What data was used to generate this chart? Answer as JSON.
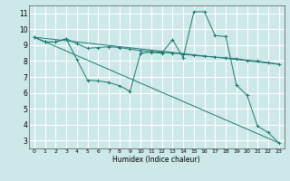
{
  "background_color": "#cce8e8",
  "grid_color": "#ffffff",
  "line_color": "#1a7a6e",
  "xlabel": "Humidex (Indice chaleur)",
  "xlim": [
    -0.5,
    23.5
  ],
  "ylim": [
    2.5,
    11.5
  ],
  "xticks": [
    0,
    1,
    2,
    3,
    4,
    5,
    6,
    7,
    8,
    9,
    10,
    11,
    12,
    13,
    14,
    15,
    16,
    17,
    18,
    19,
    20,
    21,
    22,
    23
  ],
  "yticks": [
    3,
    4,
    5,
    6,
    7,
    8,
    9,
    10,
    11
  ],
  "series1_x": [
    0,
    1,
    2,
    3,
    4,
    5,
    6,
    7,
    8,
    9,
    10,
    11,
    12,
    13,
    14,
    15,
    16,
    17,
    18,
    19,
    20,
    21,
    22,
    23
  ],
  "series1_y": [
    9.5,
    9.2,
    9.2,
    9.4,
    9.1,
    8.8,
    8.85,
    8.9,
    8.85,
    8.75,
    8.65,
    8.6,
    8.55,
    8.5,
    8.45,
    8.35,
    8.3,
    8.25,
    8.2,
    8.15,
    8.05,
    8.0,
    7.9,
    7.8
  ],
  "series2_x": [
    0,
    1,
    2,
    3,
    4,
    5,
    6,
    7,
    8,
    9,
    10,
    11,
    12,
    13,
    14,
    15,
    16,
    17,
    18,
    19,
    20,
    21,
    22,
    23
  ],
  "series2_y": [
    9.5,
    9.2,
    9.2,
    9.4,
    8.1,
    6.8,
    6.75,
    6.65,
    6.45,
    6.1,
    8.5,
    8.55,
    8.5,
    9.35,
    8.2,
    11.1,
    11.1,
    9.6,
    9.55,
    6.5,
    5.85,
    3.9,
    3.5,
    2.85
  ],
  "series3_x": [
    0,
    23
  ],
  "series3_y": [
    9.5,
    2.85
  ],
  "series4_x": [
    0,
    23
  ],
  "series4_y": [
    9.5,
    7.8
  ]
}
